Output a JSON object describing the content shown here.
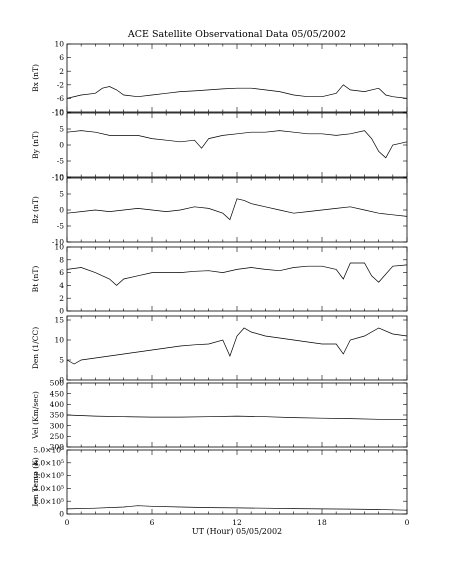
{
  "chart_data": {
    "type": "line",
    "title": "ACE Satellite Observational Data   05/05/2002",
    "xlabel": "UT (Hour)   05/05/2002",
    "xlim": [
      0,
      24
    ],
    "x_ticks": [
      "0",
      "6",
      "12",
      "18",
      "0"
    ],
    "panels": [
      {
        "ylabel": "Bx (nT)",
        "ylim": [
          -10,
          10
        ],
        "y_ticks": [
          "10",
          "6",
          "2",
          "-2",
          "-6",
          "-10"
        ],
        "y_tick_values": [
          10,
          6,
          2,
          -2,
          -6,
          -10
        ],
        "series": [
          {
            "x": [
              0,
              1,
              2,
              2.5,
              3,
              3.5,
              4,
              5,
              6,
              7,
              8,
              9,
              10,
              11,
              12,
              13,
              14,
              15,
              16,
              17,
              18,
              19,
              19.5,
              20,
              21,
              22,
              22.5,
              23,
              24
            ],
            "values": [
              -6,
              -5,
              -4.5,
              -3,
              -2.5,
              -3.5,
              -5,
              -5.5,
              -5,
              -4.5,
              -4,
              -3.8,
              -3.5,
              -3.2,
              -3,
              -3,
              -3.5,
              -4,
              -5,
              -5.5,
              -5.5,
              -4.5,
              -2,
              -3.5,
              -4,
              -3,
              -5,
              -5.5,
              -6
            ]
          }
        ]
      },
      {
        "ylabel": "By (nT)",
        "ylim": [
          -10,
          10
        ],
        "y_ticks": [
          "10",
          "5",
          "0",
          "-5",
          "-10"
        ],
        "y_tick_values": [
          10,
          5,
          0,
          -5,
          -10
        ],
        "series": [
          {
            "x": [
              0,
              1,
              2,
              3,
              4,
              5,
              6,
              7,
              8,
              9,
              9.5,
              10,
              11,
              12,
              13,
              14,
              15,
              16,
              17,
              18,
              19,
              20,
              21,
              21.5,
              22,
              22.5,
              23,
              24
            ],
            "values": [
              4,
              4.5,
              4,
              3,
              3,
              3,
              2,
              1.5,
              1,
              1.5,
              -1,
              2,
              3,
              3.5,
              4,
              4,
              4.5,
              4,
              3.5,
              3.5,
              3,
              3.5,
              4.5,
              2,
              -2,
              -4,
              0,
              1
            ]
          }
        ]
      },
      {
        "ylabel": "Bz (nT)",
        "ylim": [
          -10,
          10
        ],
        "y_ticks": [
          "10",
          "5",
          "0",
          "-5",
          "-10"
        ],
        "y_tick_values": [
          10,
          5,
          0,
          -5,
          -10
        ],
        "series": [
          {
            "x": [
              0,
              1,
              2,
              3,
              4,
              5,
              6,
              7,
              8,
              9,
              10,
              11,
              11.5,
              12,
              12.5,
              13,
              14,
              15,
              16,
              17,
              18,
              19,
              20,
              21,
              22,
              23,
              24
            ],
            "values": [
              -1,
              -0.5,
              0,
              -0.5,
              0,
              0.5,
              0,
              -0.5,
              0,
              1,
              0.5,
              -1,
              -3,
              3.5,
              3,
              2,
              1,
              0,
              -1,
              -0.5,
              0,
              0.5,
              1,
              0,
              -1,
              -1.5,
              -2
            ]
          }
        ]
      },
      {
        "ylabel": "Bt (nT)",
        "ylim": [
          0,
          10
        ],
        "y_ticks": [
          "10",
          "8",
          "6",
          "4",
          "2",
          "0"
        ],
        "y_tick_values": [
          10,
          8,
          6,
          4,
          2,
          0
        ],
        "series": [
          {
            "x": [
              0,
              1,
              2,
              3,
              3.5,
              4,
              5,
              6,
              7,
              8,
              9,
              10,
              11,
              12,
              13,
              14,
              15,
              16,
              17,
              18,
              19,
              19.5,
              20,
              21,
              21.5,
              22,
              23,
              24
            ],
            "values": [
              6.5,
              6.8,
              6,
              5,
              4,
              5,
              5.5,
              6,
              6,
              6,
              6.2,
              6.3,
              6,
              6.5,
              6.8,
              6.5,
              6.3,
              6.8,
              7,
              7,
              6.5,
              5,
              7.5,
              7.5,
              5.5,
              4.5,
              7,
              7.2
            ]
          }
        ]
      },
      {
        "ylabel": "Den (1/CC)",
        "ylim": [
          0,
          16
        ],
        "y_ticks": [
          "15",
          "10",
          "5",
          "0"
        ],
        "y_tick_values": [
          15,
          10,
          5,
          0
        ],
        "series": [
          {
            "x": [
              0,
              0.5,
              1,
              2,
              3,
              4,
              5,
              6,
              7,
              8,
              9,
              10,
              11,
              11.5,
              12,
              12.5,
              13,
              14,
              15,
              16,
              17,
              18,
              19,
              19.5,
              20,
              21,
              22,
              23,
              24
            ],
            "values": [
              5,
              4,
              5,
              5.5,
              6,
              6.5,
              7,
              7.5,
              8,
              8.5,
              8.8,
              9,
              10,
              6,
              11,
              13,
              12,
              11,
              10.5,
              10,
              9.5,
              9,
              9,
              6.5,
              10,
              11,
              13,
              11.5,
              11
            ]
          }
        ]
      },
      {
        "ylabel": "Vel (Km/sec)",
        "ylim": [
          200,
          500
        ],
        "y_ticks": [
          "500",
          "450",
          "400",
          "350",
          "300",
          "250",
          "200"
        ],
        "y_tick_values": [
          500,
          450,
          400,
          350,
          300,
          250,
          200
        ],
        "series": [
          {
            "x": [
              0,
              2,
              4,
              6,
              8,
              10,
              12,
              14,
              16,
              18,
              20,
              22,
              24
            ],
            "values": [
              350,
              345,
              342,
              340,
              340,
              342,
              345,
              342,
              338,
              335,
              333,
              330,
              330
            ]
          }
        ]
      },
      {
        "ylabel": "Ion Temp (K)",
        "ylim": [
          0,
          500000
        ],
        "y_ticks": [
          "5.0×10⁵",
          "4.0×10⁵",
          "3.0×10⁵",
          "2.0×10⁵",
          "1.0×10⁵",
          "0"
        ],
        "y_tick_values": [
          500000,
          400000,
          300000,
          200000,
          100000,
          0
        ],
        "series": [
          {
            "x": [
              0,
              2,
              4,
              5,
              6,
              8,
              10,
              12,
              14,
              16,
              18,
              20,
              22,
              24
            ],
            "values": [
              40000,
              45000,
              55000,
              65000,
              60000,
              55000,
              50000,
              48000,
              45000,
              42000,
              40000,
              38000,
              35000,
              30000
            ]
          }
        ]
      }
    ]
  }
}
